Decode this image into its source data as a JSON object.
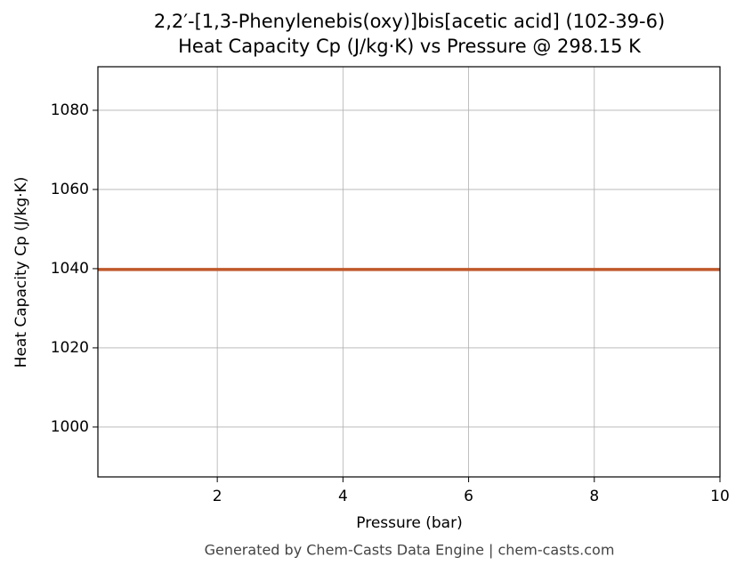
{
  "chart_data": {
    "type": "line",
    "title": "2,2′-[1,3-Phenylenebis(oxy)]bis[acetic acid] (102-39-6)",
    "subtitle": "Heat Capacity Cp (J/kg·K) vs Pressure @ 298.15 K",
    "x_label": "Pressure (bar)",
    "y_label": "Heat Capacity Cp (J/kg·K)",
    "footer": "Generated by Chem-Casts Data Engine | chem-casts.com",
    "x": [
      0.1,
      10
    ],
    "series": [
      {
        "name": "Cp",
        "color": "#c0582b",
        "values": [
          1039.8,
          1039.8
        ]
      }
    ],
    "xlim": [
      0.1,
      10
    ],
    "xticks": [
      2,
      4,
      6,
      8,
      10
    ],
    "ylim": [
      987.4,
      1091
    ],
    "yticks": [
      1000,
      1020,
      1040,
      1060,
      1080
    ],
    "grid": true
  }
}
